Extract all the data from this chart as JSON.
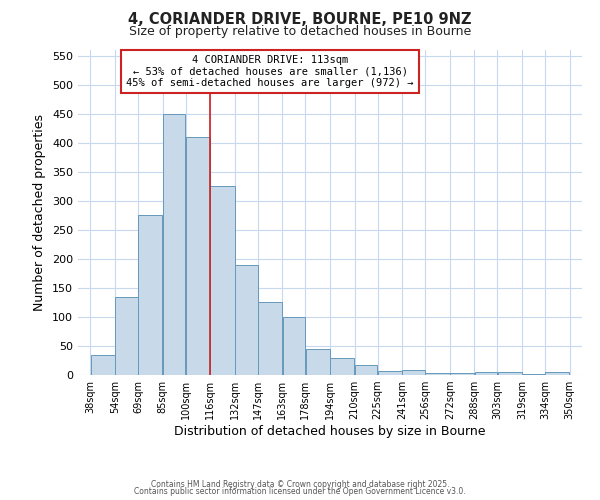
{
  "title1": "4, CORIANDER DRIVE, BOURNE, PE10 9NZ",
  "title2": "Size of property relative to detached houses in Bourne",
  "xlabel": "Distribution of detached houses by size in Bourne",
  "ylabel": "Number of detached properties",
  "bar_left_edges": [
    38,
    54,
    69,
    85,
    100,
    116,
    132,
    147,
    163,
    178,
    194,
    210,
    225,
    241,
    256,
    272,
    288,
    303,
    319,
    334
  ],
  "bar_widths": [
    16,
    15,
    16,
    15,
    16,
    16,
    15,
    16,
    15,
    16,
    16,
    15,
    16,
    15,
    16,
    16,
    15,
    16,
    15,
    16
  ],
  "bar_heights": [
    35,
    135,
    275,
    450,
    410,
    325,
    190,
    125,
    100,
    45,
    30,
    18,
    7,
    8,
    4,
    4,
    5,
    5,
    1,
    5
  ],
  "bar_facecolor": "#c8daea",
  "bar_edgecolor": "#6699bb",
  "bar_linewidth": 0.7,
  "vline_x": 116,
  "vline_color": "#cc2222",
  "vline_linewidth": 1.2,
  "ylim": [
    0,
    560
  ],
  "yticks": [
    0,
    50,
    100,
    150,
    200,
    250,
    300,
    350,
    400,
    450,
    500,
    550
  ],
  "xlim": [
    30,
    358
  ],
  "xtick_labels": [
    "38sqm",
    "54sqm",
    "69sqm",
    "85sqm",
    "100sqm",
    "116sqm",
    "132sqm",
    "147sqm",
    "163sqm",
    "178sqm",
    "194sqm",
    "210sqm",
    "225sqm",
    "241sqm",
    "256sqm",
    "272sqm",
    "288sqm",
    "303sqm",
    "319sqm",
    "334sqm",
    "350sqm"
  ],
  "xtick_positions": [
    38,
    54,
    69,
    85,
    100,
    116,
    132,
    147,
    163,
    178,
    194,
    210,
    225,
    241,
    256,
    272,
    288,
    303,
    319,
    334,
    350
  ],
  "annotation_text": "4 CORIANDER DRIVE: 113sqm\n← 53% of detached houses are smaller (1,136)\n45% of semi-detached houses are larger (972) →",
  "bg_color": "#ffffff",
  "plot_bg_color": "#ffffff",
  "grid_color": "#c8d8ee",
  "footer1": "Contains HM Land Registry data © Crown copyright and database right 2025.",
  "footer2": "Contains public sector information licensed under the Open Government Licence v3.0."
}
